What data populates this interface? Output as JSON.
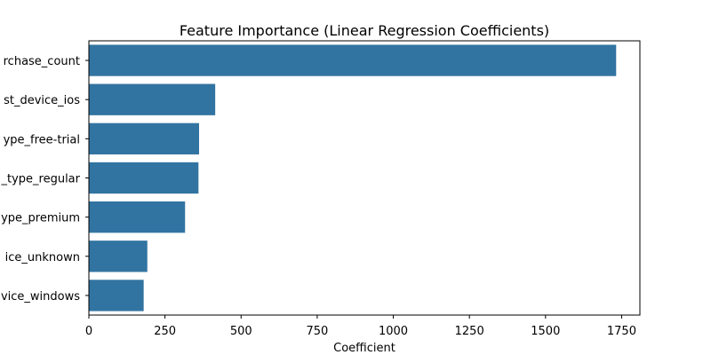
{
  "chart_data": {
    "type": "bar",
    "orientation": "horizontal",
    "title": "Feature Importance (Linear Regression Coefficients)",
    "xlabel": "Coefficient",
    "ylabel": "",
    "categories": [
      "rchase_count",
      "st_device_ios",
      "ype_free-trial",
      "_type_regular",
      "ype_premium",
      "ice_unknown",
      "vice_windows"
    ],
    "values": [
      1732,
      415,
      362,
      360,
      316,
      192,
      180
    ],
    "xlim": [
      0,
      1810
    ],
    "xticks": [
      0,
      250,
      500,
      750,
      1000,
      1250,
      1500,
      1750
    ],
    "bar_color": "#3274a1",
    "grid": false,
    "legend": "none"
  }
}
